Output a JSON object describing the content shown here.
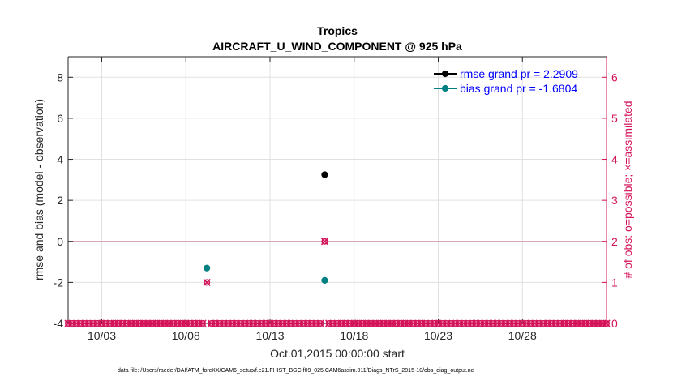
{
  "chart_data": {
    "type": "scatter",
    "title": "Tropics",
    "subtitle": "AIRCRAFT_U_WIND_COMPONENT @ 925 hPa",
    "xlabel": "Oct.01,2015 00:00:00 start",
    "ylabel": "rmse and bias (model - observation)",
    "y2label": "# of obs: o=possible; ×=assimilated",
    "footnote": "data file: /Users/raeder/DAI/ATM_forcXX/CAM6_setup/f.e21.FHIST_BGC.f09_025.CAM6assim.011/Diags_NTrS_2015-10/obs_diag_output.nc",
    "xlim": [
      1,
      33
    ],
    "ylim": [
      -4,
      9
    ],
    "y2lim": [
      0,
      6.5
    ],
    "x_ticks": [
      3,
      8,
      13,
      18,
      23,
      28
    ],
    "x_tick_labels": [
      "10/03",
      "10/08",
      "10/13",
      "10/18",
      "10/23",
      "10/28"
    ],
    "y_ticks": [
      -4,
      -2,
      0,
      2,
      4,
      6,
      8
    ],
    "y_tick_labels": [
      "-4",
      "-2",
      "0",
      "2",
      "4",
      "6",
      "8"
    ],
    "y2_ticks": [
      0,
      1,
      2,
      3,
      4,
      5,
      6
    ],
    "y2_tick_labels": [
      "0",
      "1",
      "2",
      "3",
      "4",
      "5",
      "6"
    ],
    "grid": true,
    "legend_position": "top-right",
    "series": [
      {
        "name": "rmse grand pr = 2.2909",
        "axis": "left",
        "color": "#000000",
        "marker": "dot",
        "x": [
          16.25
        ],
        "y": [
          3.25
        ]
      },
      {
        "name": "bias grand pr = -1.6804",
        "axis": "left",
        "color": "#008080",
        "marker": "dot",
        "x": [
          9.25,
          16.25
        ],
        "y": [
          -1.3,
          -1.9
        ]
      },
      {
        "name": "obs possible",
        "axis": "right",
        "color": "#d4145a",
        "marker": "circle",
        "x": [
          9.25,
          16.25
        ],
        "y": [
          1,
          2
        ]
      },
      {
        "name": "obs assimilated",
        "axis": "right",
        "color": "#d4145a",
        "marker": "x",
        "x": [
          9.25,
          16.25
        ],
        "y": [
          1,
          2
        ]
      }
    ],
    "obs_zero_days": {
      "start": 1,
      "end": 33,
      "step": 0.25
    }
  }
}
